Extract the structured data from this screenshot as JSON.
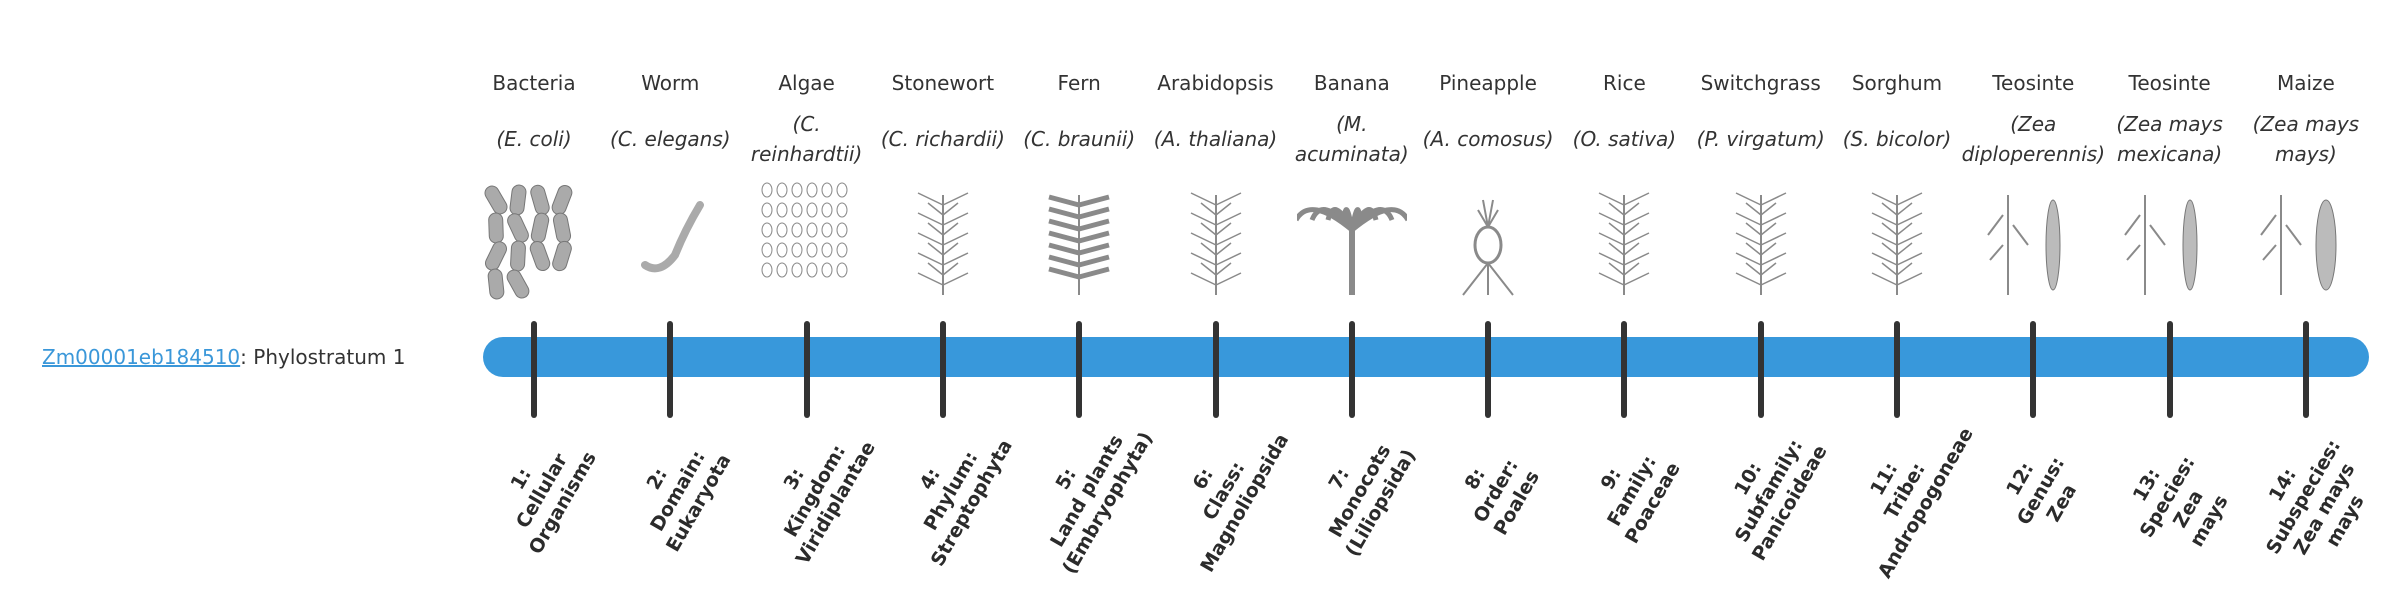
{
  "gene": {
    "id": "Zm00001eb184510",
    "suffix": ": Phylostratum 1"
  },
  "colors": {
    "bar": "#3898db",
    "tick": "#333333",
    "link": "#3a97d9"
  },
  "strata": [
    {
      "common": "Bacteria",
      "sci": "(E. coli)",
      "rank": [
        "1:",
        "Cellular",
        "Organisms"
      ],
      "icon": "bacteria-icon"
    },
    {
      "common": "Worm",
      "sci": "(C. elegans)",
      "rank": [
        "2:",
        "Domain:",
        "Eukaryota"
      ],
      "icon": "worm-icon"
    },
    {
      "common": "Algae",
      "sci": "(C. reinhardtii)",
      "rank": [
        "3:",
        "Kingdom:",
        "Viridiplantae"
      ],
      "icon": "algae-icon"
    },
    {
      "common": "Stonewort",
      "sci": "(C. richardii)",
      "rank": [
        "4:",
        "Phylum:",
        "Streptophyta"
      ],
      "icon": "stonewort-icon"
    },
    {
      "common": "Fern",
      "sci": "(C. braunii)",
      "rank": [
        "5:",
        "Land plants",
        "(Embryophyta)"
      ],
      "icon": "fern-icon"
    },
    {
      "common": "Arabidopsis",
      "sci": "(A. thaliana)",
      "rank": [
        "6:",
        "Class:",
        "Magnoliopsida"
      ],
      "icon": "arabidopsis-icon"
    },
    {
      "common": "Banana",
      "sci": "(M. acuminata)",
      "rank": [
        "7:",
        "Monocots",
        "(Liliopsida)"
      ],
      "icon": "banana-icon"
    },
    {
      "common": "Pineapple",
      "sci": "(A. comosus)",
      "rank": [
        "8:",
        "Order:",
        "Poales"
      ],
      "icon": "pineapple-icon"
    },
    {
      "common": "Rice",
      "sci": "(O. sativa)",
      "rank": [
        "9:",
        "Family:",
        "Poaceae"
      ],
      "icon": "rice-icon"
    },
    {
      "common": "Switchgrass",
      "sci": "(P. virgatum)",
      "rank": [
        "10:",
        "Subfamily:",
        "Panicoideae"
      ],
      "icon": "switchgrass-icon"
    },
    {
      "common": "Sorghum",
      "sci": "(S. bicolor)",
      "rank": [
        "11:",
        "Tribe:",
        "Andropogoneae"
      ],
      "icon": "sorghum-icon"
    },
    {
      "common": "Teosinte",
      "sci": "(Zea diploperennis)",
      "rank": [
        "12:",
        "Genus:",
        "Zea"
      ],
      "icon": "teosinte-icon"
    },
    {
      "common": "Teosinte",
      "sci": "(Zea mays mexicana)",
      "rank": [
        "13:",
        "Species:",
        "Zea",
        "mays"
      ],
      "icon": "teosinte-icon"
    },
    {
      "common": "Maize",
      "sci": "(Zea mays mays)",
      "rank": [
        "14:",
        "Subspecies:",
        "Zea mays",
        "mays"
      ],
      "icon": "maize-icon"
    }
  ]
}
